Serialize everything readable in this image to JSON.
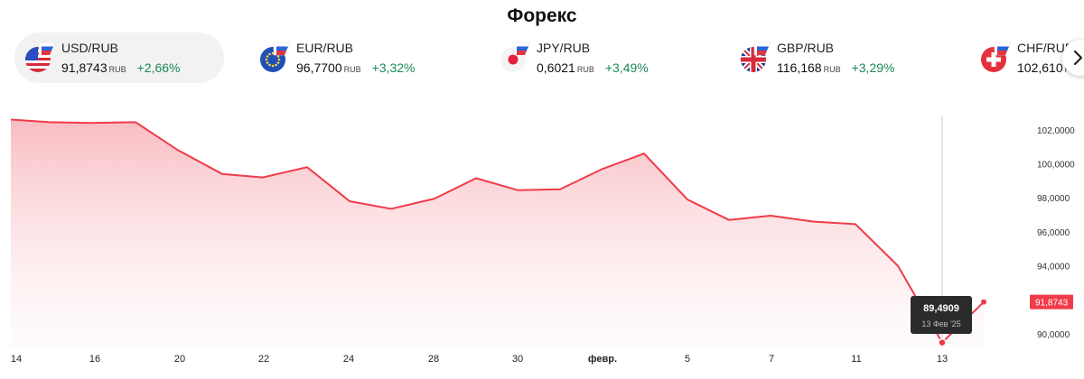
{
  "page": {
    "title": "Форекс"
  },
  "tickers": [
    {
      "pair": "USD/RUB",
      "rate": "91,8743",
      "currency": "RUB",
      "change": "+2,66%",
      "flag": "us-flag-icon",
      "active": true
    },
    {
      "pair": "EUR/RUB",
      "rate": "96,7700",
      "currency": "RUB",
      "change": "+3,32%",
      "flag": "eu-flag-icon",
      "active": false
    },
    {
      "pair": "JPY/RUB",
      "rate": "0,6021",
      "currency": "RUB",
      "change": "+3,49%",
      "flag": "jp-flag-icon",
      "active": false
    },
    {
      "pair": "GBP/RUB",
      "rate": "116,168",
      "currency": "RUB",
      "change": "+3,29%",
      "flag": "gb-flag-icon",
      "active": false
    },
    {
      "pair": "CHF/RUB",
      "rate": "102,610",
      "currency": "RUB",
      "change": "",
      "flag": "ch-flag-icon",
      "active": false
    }
  ],
  "nav": {
    "next_icon": "chevron-right-icon"
  },
  "colors": {
    "line": "#ef3b4a",
    "positive": "#1a8a5a",
    "tooltip_bg": "#2b2b2b",
    "price_label": "#ef3b4a"
  },
  "chart_data": {
    "type": "area",
    "y_ticks": [
      "102,0000",
      "100,0000",
      "98,0000",
      "96,0000",
      "94,0000",
      "92,0000",
      "90,0000"
    ],
    "y_range": [
      90,
      102
    ],
    "x_ticks": [
      "14",
      "16",
      "20",
      "22",
      "24",
      "28",
      "30",
      "февр.",
      "5",
      "7",
      "11",
      "13"
    ],
    "series": [
      {
        "values": [
          102.6,
          102.45,
          102.4,
          102.45,
          100.8,
          99.4,
          99.2,
          99.8,
          97.8,
          97.35,
          97.95,
          99.15,
          98.45,
          98.5,
          99.7,
          100.6,
          97.9,
          96.7,
          96.95,
          96.6,
          96.45,
          94.0,
          89.4909,
          91.8743
        ]
      }
    ],
    "current_price_label": "91,8743",
    "tooltip": {
      "value": "89,4909",
      "date": "13 Фев '25"
    },
    "grid": false
  }
}
